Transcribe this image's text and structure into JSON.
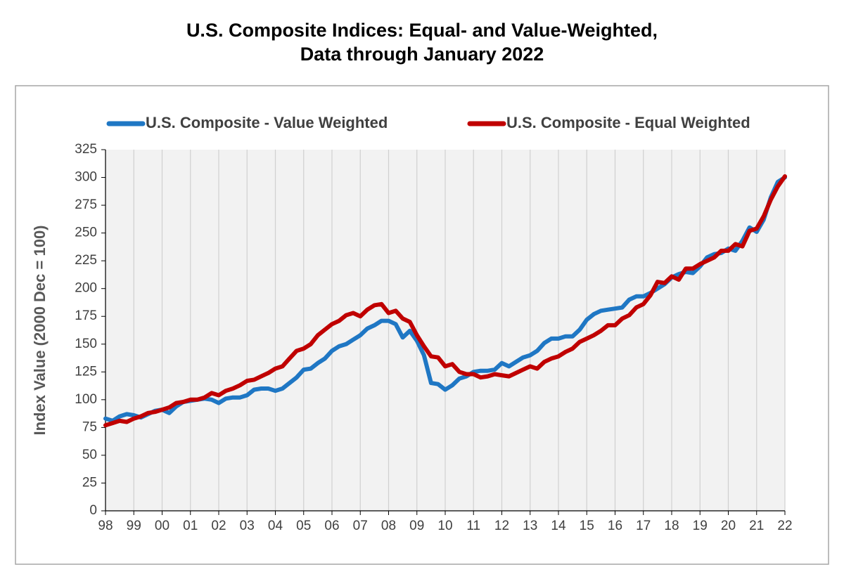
{
  "chart_data": {
    "type": "line",
    "title": "U.S. Composite Indices: Equal- and Value-Weighted,",
    "subtitle": "Data through January 2022",
    "y_label": "Index Value (2000 Dec = 100)",
    "x": [
      1998,
      1998.25,
      1998.5,
      1998.75,
      1999,
      1999.25,
      1999.5,
      1999.75,
      2000,
      2000.25,
      2000.5,
      2000.75,
      2001,
      2001.25,
      2001.5,
      2001.75,
      2002,
      2002.25,
      2002.5,
      2002.75,
      2003,
      2003.25,
      2003.5,
      2003.75,
      2004,
      2004.25,
      2004.5,
      2004.75,
      2005,
      2005.25,
      2005.5,
      2005.75,
      2006,
      2006.25,
      2006.5,
      2006.75,
      2007,
      2007.25,
      2007.5,
      2007.75,
      2008,
      2008.25,
      2008.5,
      2008.75,
      2009,
      2009.25,
      2009.5,
      2009.75,
      2010,
      2010.25,
      2010.5,
      2010.75,
      2011,
      2011.25,
      2011.5,
      2011.75,
      2012,
      2012.25,
      2012.5,
      2012.75,
      2013,
      2013.25,
      2013.5,
      2013.75,
      2014,
      2014.25,
      2014.5,
      2014.75,
      2015,
      2015.25,
      2015.5,
      2015.75,
      2016,
      2016.25,
      2016.5,
      2016.75,
      2017,
      2017.25,
      2017.5,
      2017.75,
      2018,
      2018.25,
      2018.5,
      2018.75,
      2019,
      2019.25,
      2019.5,
      2019.75,
      2020,
      2020.25,
      2020.5,
      2020.75,
      2021,
      2021.25,
      2021.5,
      2021.75,
      2022
    ],
    "series": [
      {
        "name": "U.S. Composite - Value Weighted",
        "color": "#1f77c4",
        "values": [
          83,
          81,
          85,
          87,
          86,
          84,
          87,
          90,
          91,
          88,
          94,
          98,
          99,
          100,
          101,
          100,
          97,
          101,
          102,
          102,
          104,
          109,
          110,
          110,
          108,
          110,
          115,
          120,
          127,
          128,
          133,
          137,
          144,
          148,
          150,
          154,
          158,
          164,
          167,
          171,
          171,
          168,
          156,
          162,
          153,
          140,
          115,
          114,
          109,
          113,
          119,
          121,
          125,
          126,
          126,
          127,
          133,
          130,
          134,
          138,
          140,
          144,
          151,
          155,
          155,
          157,
          157,
          163,
          172,
          177,
          180,
          181,
          182,
          183,
          190,
          193,
          193,
          196,
          200,
          204,
          210,
          213,
          215,
          214,
          220,
          228,
          231,
          232,
          236,
          234,
          243,
          255,
          251,
          262,
          282,
          296,
          300
        ]
      },
      {
        "name": "U.S. Composite - Equal Weighted",
        "color": "#c00000",
        "values": [
          77,
          79,
          81,
          80,
          83,
          85,
          88,
          89,
          91,
          93,
          97,
          98,
          100,
          100,
          102,
          106,
          104,
          108,
          110,
          113,
          117,
          118,
          121,
          124,
          128,
          130,
          137,
          144,
          146,
          150,
          158,
          163,
          168,
          171,
          176,
          178,
          175,
          181,
          185,
          186,
          178,
          180,
          173,
          170,
          158,
          148,
          139,
          138,
          130,
          132,
          125,
          123,
          123,
          120,
          121,
          123,
          122,
          121,
          124,
          127,
          130,
          128,
          134,
          137,
          139,
          143,
          146,
          152,
          155,
          158,
          162,
          167,
          167,
          173,
          176,
          183,
          186,
          194,
          206,
          205,
          211,
          208,
          218,
          218,
          222,
          225,
          228,
          234,
          234,
          240,
          238,
          252,
          254,
          265,
          280,
          292,
          301
        ]
      }
    ],
    "xlim": [
      1998,
      2022
    ],
    "xticks": [
      {
        "value": 1998,
        "label": "98"
      },
      {
        "value": 1999,
        "label": "99"
      },
      {
        "value": 2000,
        "label": "00"
      },
      {
        "value": 2001,
        "label": "01"
      },
      {
        "value": 2002,
        "label": "02"
      },
      {
        "value": 2003,
        "label": "03"
      },
      {
        "value": 2004,
        "label": "04"
      },
      {
        "value": 2005,
        "label": "05"
      },
      {
        "value": 2006,
        "label": "06"
      },
      {
        "value": 2007,
        "label": "07"
      },
      {
        "value": 2008,
        "label": "08"
      },
      {
        "value": 2009,
        "label": "09"
      },
      {
        "value": 2010,
        "label": "10"
      },
      {
        "value": 2011,
        "label": "11"
      },
      {
        "value": 2012,
        "label": "12"
      },
      {
        "value": 2013,
        "label": "13"
      },
      {
        "value": 2014,
        "label": "14"
      },
      {
        "value": 2015,
        "label": "15"
      },
      {
        "value": 2016,
        "label": "16"
      },
      {
        "value": 2017,
        "label": "17"
      },
      {
        "value": 2018,
        "label": "18"
      },
      {
        "value": 2019,
        "label": "19"
      },
      {
        "value": 2020,
        "label": "20"
      },
      {
        "value": 2021,
        "label": "21"
      },
      {
        "value": 2022,
        "label": "22"
      }
    ],
    "ylim": [
      0,
      325
    ],
    "yticks": [
      0,
      25,
      50,
      75,
      100,
      125,
      150,
      175,
      200,
      225,
      250,
      275,
      300,
      325
    ],
    "grid": "x"
  }
}
